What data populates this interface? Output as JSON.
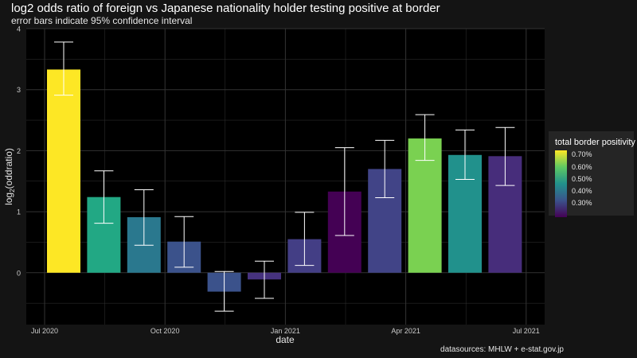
{
  "title": "log2 odds ratio of foreign vs Japanese nationality holder testing positive at border",
  "subtitle": "error bars indicate 95% confidence interval",
  "caption": "datasources: MHLW + e-stat.gov.jp",
  "legend": {
    "title": "total border positivity",
    "labels": [
      "0.70%",
      "0.60%",
      "0.50%",
      "0.40%",
      "0.30%"
    ]
  },
  "colors": {
    "background": "#141414",
    "panel": "#000000",
    "grid": "#333333",
    "errorbar": "#ffffff"
  },
  "chart_data": {
    "type": "bar",
    "xlabel": "date",
    "ylabel": "log2(oddratio)",
    "x_ticks": [
      "Jul 2020",
      "Oct 2020",
      "Jan 2021",
      "Apr 2021",
      "Jul 2021"
    ],
    "y_ticks": [
      "4",
      "3",
      "2",
      "1",
      "0"
    ],
    "ylim": [
      -0.85,
      4
    ],
    "grid": true,
    "legend_position": "right",
    "categories": [
      "Jul 2020",
      "Aug 2020",
      "Sep 2020",
      "Oct 2020",
      "Nov 2020",
      "Dec 2020",
      "Jan 2021",
      "Feb 2021",
      "Mar 2021",
      "Apr 2021",
      "May 2021",
      "Jun 2021"
    ],
    "values": [
      3.33,
      1.24,
      0.91,
      0.51,
      -0.31,
      -0.11,
      0.55,
      1.33,
      1.7,
      2.2,
      1.93,
      1.91
    ],
    "lower": [
      2.91,
      0.81,
      0.45,
      0.09,
      -0.63,
      -0.42,
      0.12,
      0.61,
      1.23,
      1.84,
      1.53,
      1.43
    ],
    "upper": [
      3.78,
      1.67,
      1.36,
      0.92,
      0.02,
      0.19,
      0.99,
      2.05,
      2.17,
      2.59,
      2.34,
      2.38
    ],
    "fill_colors": [
      "#fde725",
      "#22a884",
      "#2a788e",
      "#3b528b",
      "#3b528b",
      "#46327e",
      "#433e85",
      "#440154",
      "#414487",
      "#7ad151",
      "#21918c",
      "#472d7b"
    ]
  }
}
